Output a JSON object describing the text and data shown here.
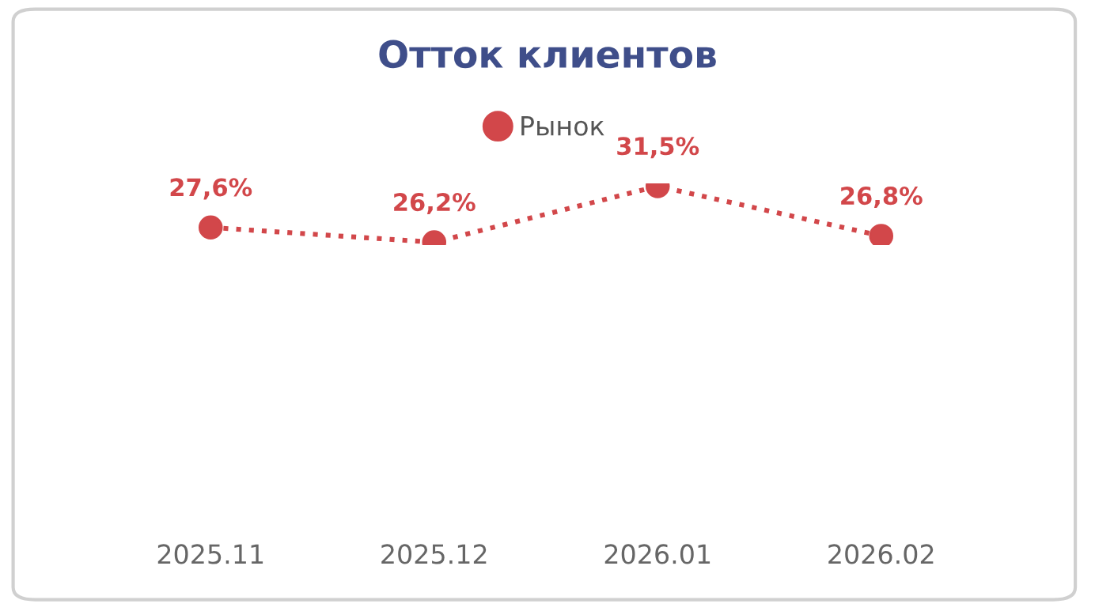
{
  "chart_data": {
    "type": "line",
    "title": "Отток клиентов",
    "categories": [
      "2025.11",
      "2025.12",
      "2026.01",
      "2026.02"
    ],
    "series": [
      {
        "name": "Рынок",
        "color": "#d2474a",
        "values": [
          27.6,
          26.2,
          31.5,
          26.8
        ],
        "value_labels": [
          "27,6%",
          "26,2%",
          "31,5%",
          "26,8%"
        ]
      }
    ],
    "tick_labels": "x",
    "grid": false,
    "legend": "top",
    "marker": "circle",
    "line_style": "dotted"
  }
}
